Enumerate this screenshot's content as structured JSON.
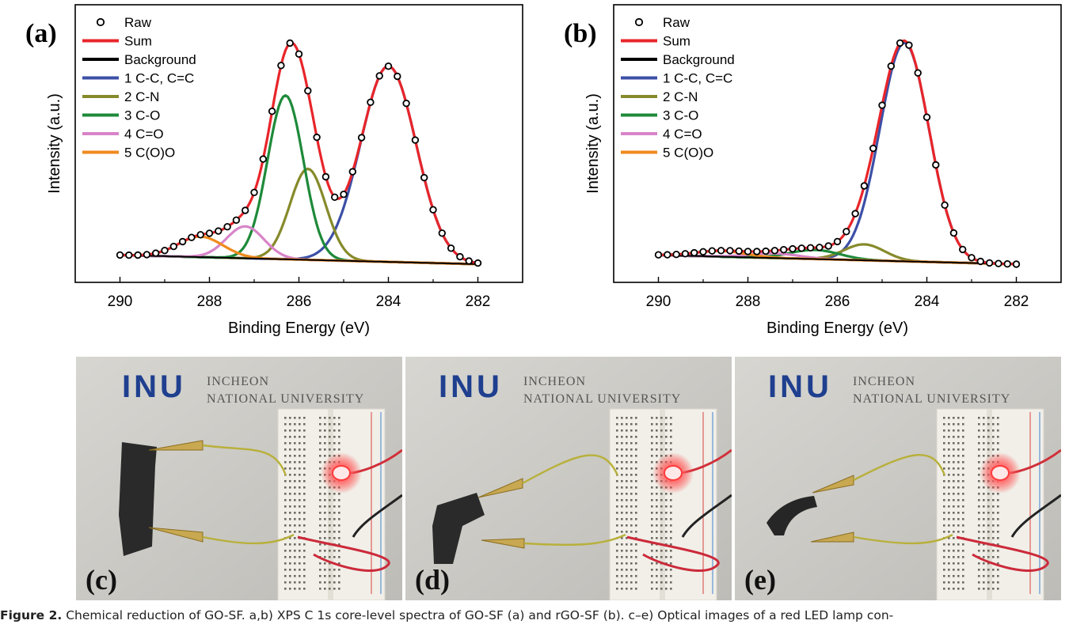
{
  "chart_data": [
    {
      "panel": "(a)",
      "type": "line",
      "xlabel": "Binding Energy (eV)",
      "ylabel": "Intensity (a.u.)",
      "xlim": [
        291,
        281
      ],
      "ylim": [
        -0.12,
        1.1
      ],
      "xticks": [
        290,
        288,
        286,
        284,
        282
      ],
      "legend_position": "top-left",
      "legend": [
        {
          "label": "Raw",
          "color": "#000000",
          "marker": "circle"
        },
        {
          "label": "Sum",
          "color": "#e8252a"
        },
        {
          "label": "Background",
          "color": "#000000"
        },
        {
          "label": "1 C-C, C=C",
          "color": "#3c4fa6"
        },
        {
          "label": "2 C-N",
          "color": "#868a2a"
        },
        {
          "label": "3 C-O",
          "color": "#1e8a3a"
        },
        {
          "label": "4 C=O",
          "color": "#d884c8"
        },
        {
          "label": "5 C(O)O",
          "color": "#f08a1e"
        }
      ],
      "background": {
        "start": [
          290,
          0.0
        ],
        "end": [
          282,
          -0.04
        ]
      },
      "components": [
        {
          "name": "1 C-C, C=C",
          "center": 284.0,
          "height": 0.86,
          "width": 0.62
        },
        {
          "name": "2 C-N",
          "center": 285.8,
          "height": 0.4,
          "width": 0.4
        },
        {
          "name": "3 C-O",
          "center": 286.3,
          "height": 0.72,
          "width": 0.4
        },
        {
          "name": "4 C=O",
          "center": 287.2,
          "height": 0.14,
          "width": 0.42
        },
        {
          "name": "5 C(O)O",
          "center": 288.2,
          "height": 0.09,
          "width": 0.5
        }
      ],
      "raw_x": [
        290,
        289.8,
        289.6,
        289.4,
        289.2,
        289.0,
        288.8,
        288.6,
        288.4,
        288.2,
        288.0,
        287.8,
        287.6,
        287.4,
        287.2,
        287.0,
        286.8,
        286.6,
        286.4,
        286.2,
        286.0,
        285.8,
        285.6,
        285.4,
        285.2,
        285.0,
        284.8,
        284.6,
        284.4,
        284.2,
        284.0,
        283.8,
        283.6,
        283.4,
        283.2,
        283.0,
        282.8,
        282.6,
        282.4,
        282.2,
        282.0
      ]
    },
    {
      "panel": "(b)",
      "type": "line",
      "xlabel": "Binding Energy (eV)",
      "ylabel": "Intensity (a.u.)",
      "xlim": [
        291,
        281
      ],
      "ylim": [
        -0.12,
        1.1
      ],
      "xticks": [
        290,
        288,
        286,
        284,
        282
      ],
      "legend_position": "top-left",
      "legend": [
        {
          "label": "Raw",
          "color": "#000000",
          "marker": "circle"
        },
        {
          "label": "Sum",
          "color": "#e8252a"
        },
        {
          "label": "Background",
          "color": "#000000"
        },
        {
          "label": "1 C-C, C=C",
          "color": "#3c4fa6"
        },
        {
          "label": "2 C-N",
          "color": "#868a2a"
        },
        {
          "label": "3 C-O",
          "color": "#1e8a3a"
        },
        {
          "label": "4 C=O",
          "color": "#d884c8"
        },
        {
          "label": "5 C(O)O",
          "color": "#f08a1e"
        }
      ],
      "background": {
        "start": [
          290,
          0.0
        ],
        "end": [
          282,
          -0.04
        ]
      },
      "components": [
        {
          "name": "1 C-C, C=C",
          "center": 284.5,
          "height": 0.96,
          "width": 0.55
        },
        {
          "name": "2 C-N",
          "center": 285.4,
          "height": 0.07,
          "width": 0.45
        },
        {
          "name": "3 C-O",
          "center": 286.5,
          "height": 0.04,
          "width": 0.55
        },
        {
          "name": "4 C=O",
          "center": 287.4,
          "height": 0.02,
          "width": 0.55
        },
        {
          "name": "5 C(O)O",
          "center": 288.6,
          "height": 0.025,
          "width": 0.55
        }
      ],
      "raw_x": [
        290,
        289.8,
        289.6,
        289.4,
        289.2,
        289.0,
        288.8,
        288.6,
        288.4,
        288.2,
        288.0,
        287.8,
        287.6,
        287.4,
        287.2,
        287.0,
        286.8,
        286.6,
        286.4,
        286.2,
        286.0,
        285.8,
        285.6,
        285.4,
        285.2,
        285.0,
        284.8,
        284.6,
        284.4,
        284.2,
        284.0,
        283.8,
        283.6,
        283.4,
        283.2,
        283.0,
        282.8,
        282.6,
        282.4,
        282.2,
        282.0
      ]
    }
  ],
  "photos": [
    {
      "panel": "(c)",
      "logo_mark": "INU",
      "logo_line1": "INCHEON",
      "logo_line2": "NATIONAL UNIVERSITY"
    },
    {
      "panel": "(d)",
      "logo_mark": "INU",
      "logo_line1": "INCHEON",
      "logo_line2": "NATIONAL UNIVERSITY"
    },
    {
      "panel": "(e)",
      "logo_mark": "INU",
      "logo_line1": "INCHEON",
      "logo_line2": "NATIONAL UNIVERSITY"
    }
  ],
  "caption": {
    "label": "Figure 2.",
    "text": "Chemical reduction of GO-SF. a,b) XPS C 1s core-level spectra of GO-SF (a) and rGO-SF (b). c–e) Optical images of a red LED lamp con-"
  }
}
